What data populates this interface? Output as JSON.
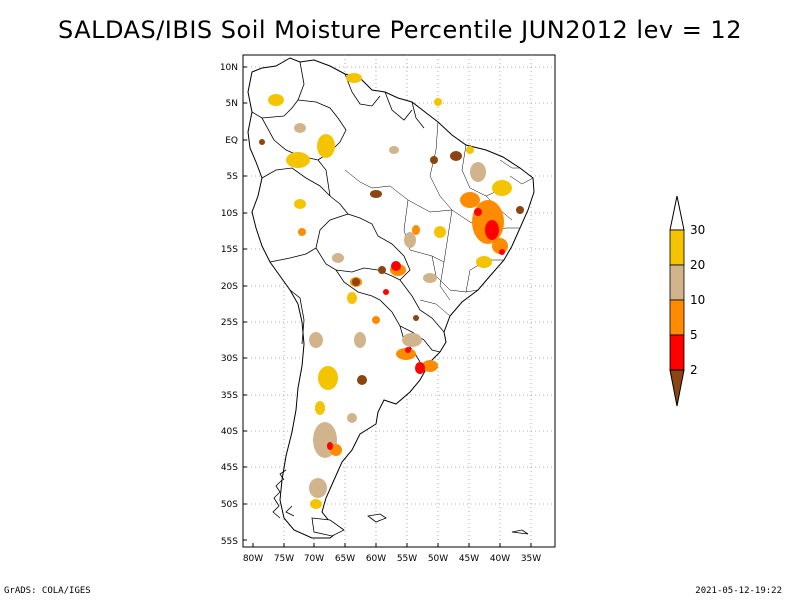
{
  "title": "SALDAS/IBIS Soil Moisture Percentile JUN2012 lev = 12",
  "lat_labels": [
    "10N",
    "5N",
    "EQ",
    "5S",
    "10S",
    "15S",
    "20S",
    "25S",
    "30S",
    "35S",
    "40S",
    "45S",
    "50S",
    "55S"
  ],
  "lon_labels": [
    "80W",
    "75W",
    "70W",
    "65W",
    "60W",
    "55W",
    "50W",
    "45W",
    "40W",
    "35W"
  ],
  "legend": {
    "labels": [
      "30",
      "20",
      "10",
      "5",
      "2"
    ],
    "colors": {
      "above30": "#ffffff",
      "c20_30": "#f5c400",
      "c10_20": "#d2b48c",
      "c5_10": "#ff8c00",
      "c2_5": "#ff0000",
      "below2": "#8b4513"
    }
  },
  "footer": {
    "left": "GrADS: COLA/IGES",
    "right": "2021-05-12-19:22"
  }
}
